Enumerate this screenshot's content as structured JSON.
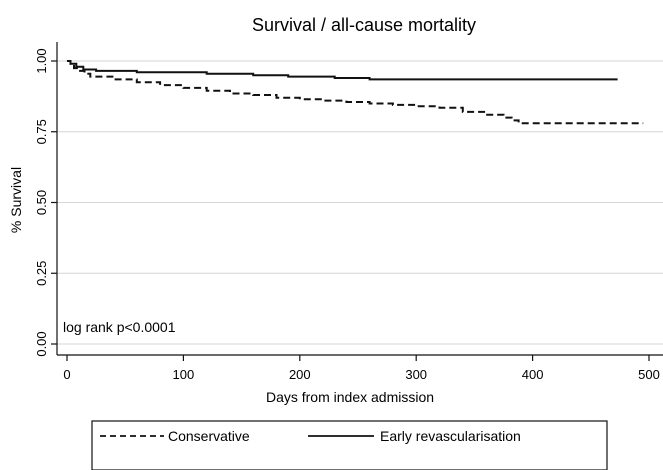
{
  "chart_data": {
    "type": "line",
    "title": "Survival / all-cause mortality",
    "xlabel": "Days from index admission",
    "ylabel": "% Survival",
    "xlim": [
      0,
      500
    ],
    "ylim": [
      0,
      1
    ],
    "x_ticks": [
      "0",
      "100",
      "200",
      "300",
      "400",
      "500"
    ],
    "y_ticks": [
      "0.00",
      "0.25",
      "0.50",
      "0.75",
      "1.00"
    ],
    "grid": "horizontal",
    "legend_position": "bottom",
    "annotation": "log rank p<0.0001",
    "series": [
      {
        "name": "Conservative",
        "style": "dashed",
        "color": "#111111",
        "points": [
          [
            0,
            1.0
          ],
          [
            3,
            0.99
          ],
          [
            6,
            0.975
          ],
          [
            10,
            0.965
          ],
          [
            15,
            0.955
          ],
          [
            20,
            0.945
          ],
          [
            40,
            0.935
          ],
          [
            60,
            0.925
          ],
          [
            80,
            0.915
          ],
          [
            100,
            0.905
          ],
          [
            120,
            0.895
          ],
          [
            140,
            0.885
          ],
          [
            160,
            0.88
          ],
          [
            180,
            0.87
          ],
          [
            200,
            0.865
          ],
          [
            220,
            0.86
          ],
          [
            240,
            0.855
          ],
          [
            260,
            0.85
          ],
          [
            280,
            0.845
          ],
          [
            300,
            0.84
          ],
          [
            320,
            0.835
          ],
          [
            340,
            0.82
          ],
          [
            360,
            0.81
          ],
          [
            375,
            0.8
          ],
          [
            382,
            0.79
          ],
          [
            388,
            0.78
          ],
          [
            420,
            0.78
          ],
          [
            495,
            0.78
          ]
        ]
      },
      {
        "name": "Early revascularisation",
        "style": "solid",
        "color": "#111111",
        "points": [
          [
            0,
            1.0
          ],
          [
            3,
            0.99
          ],
          [
            8,
            0.98
          ],
          [
            14,
            0.97
          ],
          [
            25,
            0.965
          ],
          [
            60,
            0.96
          ],
          [
            100,
            0.96
          ],
          [
            120,
            0.955
          ],
          [
            160,
            0.95
          ],
          [
            190,
            0.945
          ],
          [
            230,
            0.94
          ],
          [
            260,
            0.935
          ],
          [
            300,
            0.935
          ],
          [
            350,
            0.935
          ],
          [
            400,
            0.935
          ],
          [
            473,
            0.935
          ]
        ]
      }
    ]
  }
}
